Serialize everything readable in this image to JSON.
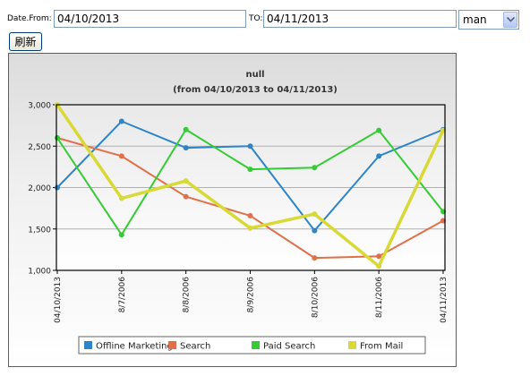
{
  "filters": {
    "from_label": "Date.From:",
    "from_value": "04/10/2013",
    "to_label": "TO:",
    "to_value": "04/11/2013",
    "select_value": "man",
    "refresh_label": "刷新"
  },
  "chart_data": {
    "type": "line",
    "title": "null",
    "subtitle": "(from 04/10/2013 to 04/11/2013)",
    "categories": [
      "04/10/2013",
      "8/7/2006",
      "8/8/2006",
      "8/9/2006",
      "8/10/2006",
      "8/11/2006",
      "04/11/2013"
    ],
    "ylim": [
      1000,
      3000
    ],
    "yticks": [
      "1,000",
      "1,500",
      "2,000",
      "2,500",
      "3,000"
    ],
    "ytick_values": [
      1000,
      1500,
      2000,
      2500,
      3000
    ],
    "grid": true,
    "legend_position": "bottom",
    "series": [
      {
        "name": "Offline Marketing",
        "color": "#2c84c9",
        "values": [
          2000,
          2800,
          2480,
          2500,
          1480,
          2380,
          2700
        ]
      },
      {
        "name": "Search",
        "color": "#e0704a",
        "values": [
          2600,
          2380,
          1890,
          1660,
          1150,
          1170,
          1600
        ]
      },
      {
        "name": "Paid Search",
        "color": "#33cc33",
        "values": [
          2600,
          1430,
          2700,
          2220,
          2240,
          2690,
          1710
        ]
      },
      {
        "name": "From Mail",
        "color": "#d9d936",
        "values": [
          3000,
          1870,
          2080,
          1510,
          1680,
          1050,
          2690
        ]
      }
    ]
  }
}
